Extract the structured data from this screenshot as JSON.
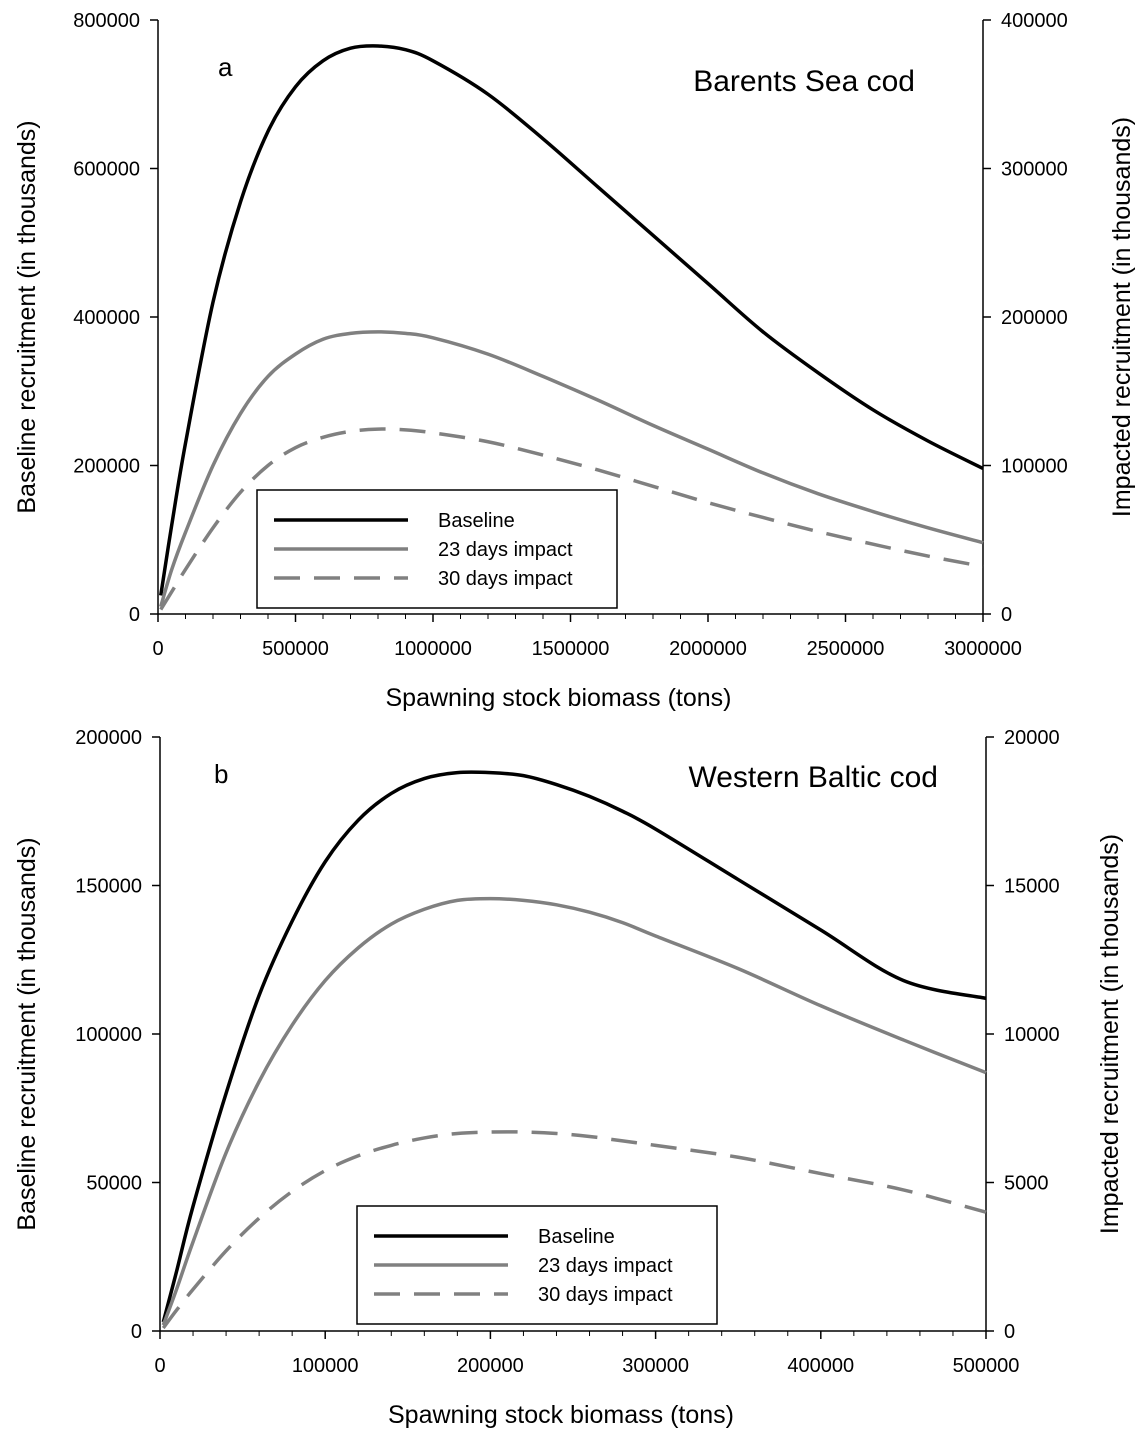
{
  "chart_data": [
    {
      "type": "line",
      "panel_letter": "a",
      "title": "Barents Sea cod",
      "xlabel": "Spawning stock biomass (tons)",
      "ylabel": "Baseline recruitment (in thousands)",
      "y2label": "Impacted recruitment (in thousands)",
      "xlim": [
        0,
        3000000
      ],
      "ylim": [
        0,
        800000
      ],
      "y2lim": [
        0,
        400000
      ],
      "xticks": [
        0,
        500000,
        1000000,
        1500000,
        2000000,
        2500000,
        3000000
      ],
      "xtick_labels": [
        "0",
        "500000",
        "1000000",
        "1500000",
        "2000000",
        "2500000",
        "3000000"
      ],
      "yticks": [
        0,
        200000,
        400000,
        600000,
        800000
      ],
      "ytick_labels": [
        "0",
        "200000",
        "400000",
        "600000",
        "800000"
      ],
      "y2ticks": [
        0,
        100000,
        200000,
        300000,
        400000
      ],
      "y2tick_labels": [
        "0",
        "100000",
        "200000",
        "300000",
        "400000"
      ],
      "legend_position": "lower-left",
      "grid": false,
      "series": [
        {
          "name": "Baseline",
          "axis": "left",
          "color": "#000000",
          "dash": "solid",
          "x": [
            10000,
            50000,
            100000,
            200000,
            300000,
            400000,
            500000,
            600000,
            700000,
            800000,
            900000,
            1000000,
            1200000,
            1400000,
            1600000,
            1800000,
            2000000,
            2200000,
            2400000,
            2600000,
            2800000,
            3000000
          ],
          "y": [
            25000,
            120000,
            230000,
            420000,
            555000,
            650000,
            710000,
            745000,
            762000,
            765000,
            760000,
            745000,
            700000,
            640000,
            575000,
            510000,
            445000,
            380000,
            325000,
            275000,
            233000,
            196000
          ]
        },
        {
          "name": "23 days impact",
          "axis": "right",
          "color": "#808080",
          "dash": "solid",
          "x": [
            10000,
            50000,
            100000,
            200000,
            300000,
            400000,
            500000,
            600000,
            700000,
            800000,
            900000,
            1000000,
            1200000,
            1400000,
            1600000,
            1800000,
            2000000,
            2200000,
            2400000,
            2600000,
            2800000,
            3000000
          ],
          "y": [
            5000,
            30000,
            55000,
            100000,
            135000,
            160000,
            175000,
            185000,
            189000,
            190000,
            189000,
            186000,
            175000,
            160000,
            144000,
            127000,
            111000,
            95000,
            81000,
            69000,
            58000,
            48000
          ]
        },
        {
          "name": "30 days impact",
          "axis": "right",
          "color": "#808080",
          "dash": "dashed",
          "x": [
            10000,
            50000,
            100000,
            200000,
            300000,
            400000,
            500000,
            600000,
            700000,
            800000,
            900000,
            1000000,
            1200000,
            1400000,
            1600000,
            1800000,
            2000000,
            2200000,
            2400000,
            2600000,
            2800000,
            3000000
          ],
          "y": [
            3000,
            15000,
            30000,
            58000,
            82000,
            100000,
            112000,
            119000,
            123000,
            124500,
            124000,
            122000,
            116000,
            107000,
            97000,
            86000,
            75000,
            65000,
            55500,
            47000,
            39000,
            32000
          ]
        }
      ]
    },
    {
      "type": "line",
      "panel_letter": "b",
      "title": "Western Baltic cod",
      "xlabel": "Spawning stock biomass (tons)",
      "ylabel": "Baseline recruitment (in thousands)",
      "y2label": "Impacted recruitment (in thousands)",
      "xlim": [
        0,
        500000
      ],
      "ylim": [
        0,
        200000
      ],
      "y2lim": [
        0,
        20000
      ],
      "xticks": [
        0,
        100000,
        200000,
        300000,
        400000,
        500000
      ],
      "xtick_labels": [
        "0",
        "100000",
        "200000",
        "300000",
        "400000",
        "500000"
      ],
      "yticks": [
        0,
        50000,
        100000,
        150000,
        200000
      ],
      "ytick_labels": [
        "0",
        "50000",
        "100000",
        "150000",
        "200000"
      ],
      "y2ticks": [
        0,
        5000,
        10000,
        15000,
        20000
      ],
      "y2tick_labels": [
        "0",
        "5000",
        "10000",
        "15000",
        "20000"
      ],
      "legend_position": "lower-center",
      "grid": false,
      "series": [
        {
          "name": "Baseline",
          "axis": "left",
          "color": "#000000",
          "dash": "solid",
          "x": [
            2000,
            10000,
            20000,
            40000,
            60000,
            80000,
            100000,
            120000,
            140000,
            160000,
            180000,
            200000,
            220000,
            240000,
            260000,
            280000,
            300000,
            350000,
            400000,
            450000,
            500000
          ],
          "y": [
            3000,
            20000,
            42000,
            80000,
            113000,
            138000,
            158000,
            172000,
            181000,
            186000,
            188000,
            188000,
            187000,
            184000,
            180000,
            175000,
            169000,
            152000,
            135000,
            118000,
            112000
          ]
        },
        {
          "name": "23 days impact",
          "axis": "right",
          "color": "#808080",
          "dash": "solid",
          "x": [
            2000,
            10000,
            20000,
            40000,
            60000,
            80000,
            100000,
            120000,
            140000,
            160000,
            180000,
            200000,
            220000,
            240000,
            260000,
            280000,
            300000,
            350000,
            400000,
            450000,
            500000
          ],
          "y": [
            200,
            1400,
            3000,
            6000,
            8400,
            10300,
            11800,
            12900,
            13700,
            14200,
            14500,
            14560,
            14500,
            14350,
            14100,
            13750,
            13300,
            12200,
            10950,
            9800,
            8700
          ]
        },
        {
          "name": "30 days impact",
          "axis": "right",
          "color": "#808080",
          "dash": "dashed",
          "x": [
            2000,
            10000,
            20000,
            40000,
            60000,
            80000,
            100000,
            120000,
            140000,
            160000,
            180000,
            200000,
            220000,
            240000,
            260000,
            280000,
            300000,
            350000,
            400000,
            450000,
            500000
          ],
          "y": [
            100,
            700,
            1400,
            2700,
            3800,
            4700,
            5400,
            5900,
            6250,
            6500,
            6650,
            6700,
            6700,
            6650,
            6550,
            6400,
            6250,
            5850,
            5300,
            4750,
            4000
          ]
        }
      ]
    }
  ]
}
